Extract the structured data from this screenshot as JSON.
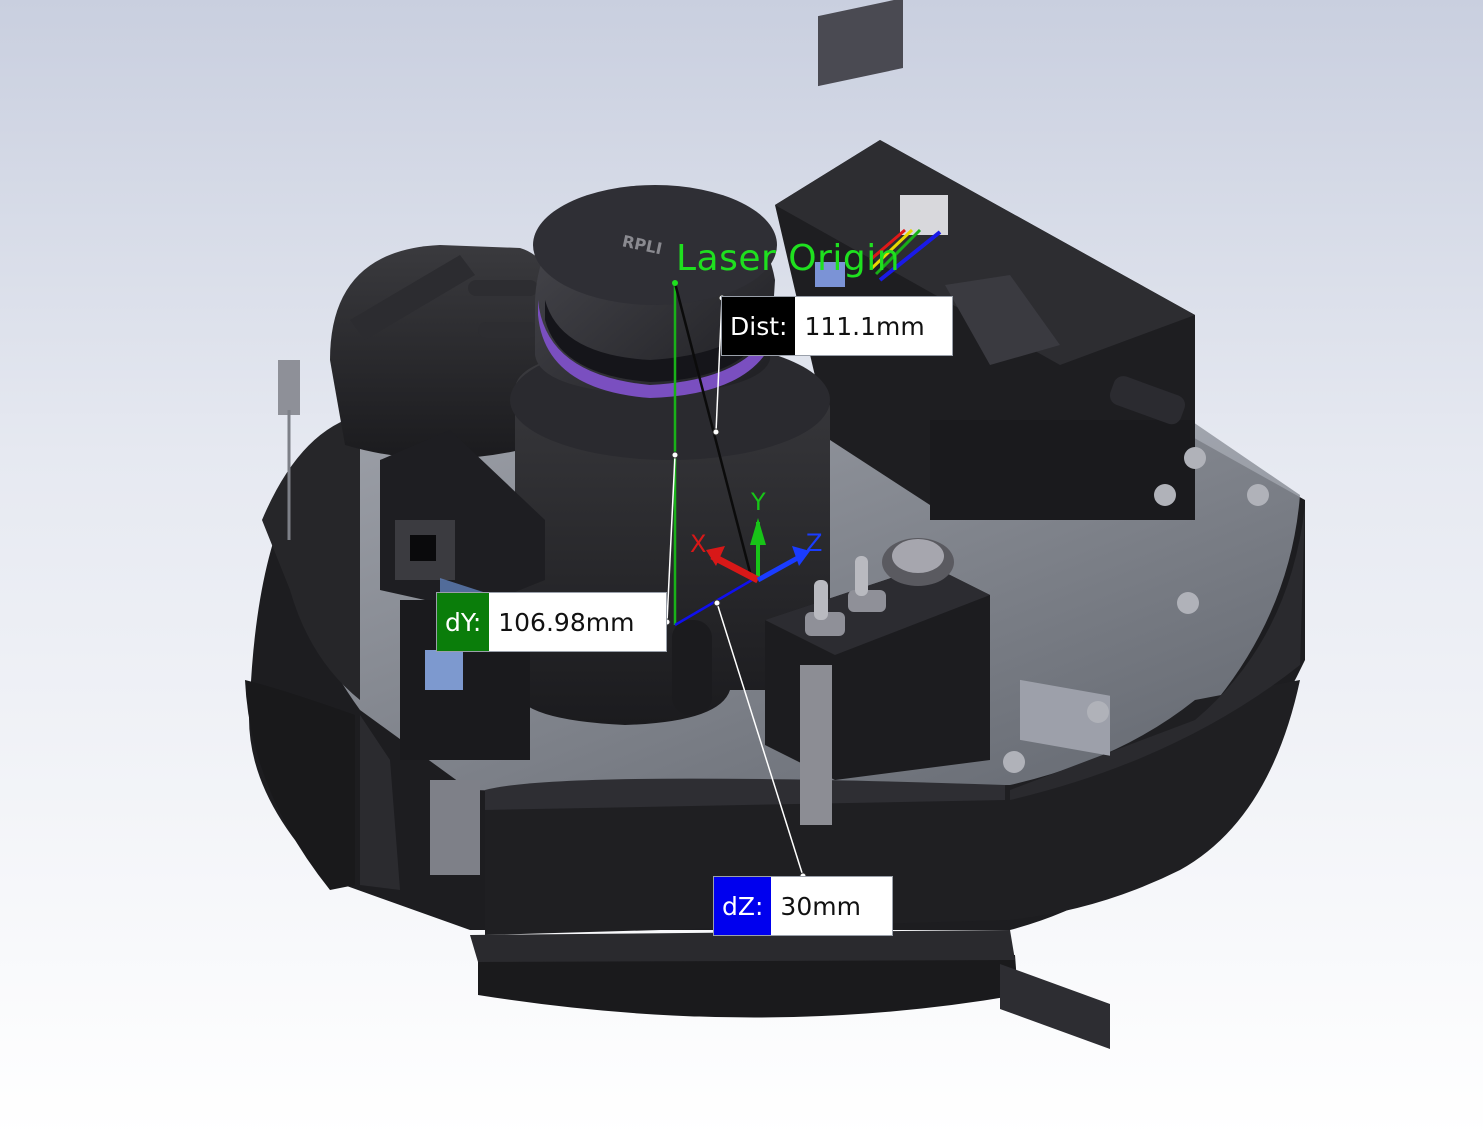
{
  "annotation": {
    "origin_label": "Laser Origin",
    "origin_color": "#1fe01f"
  },
  "measurements": [
    {
      "id": "dist",
      "label": "Dist:",
      "value": "111.1mm",
      "label_bg": "#000000"
    },
    {
      "id": "dy",
      "label": "dY:",
      "value": "106.98mm",
      "label_bg": "#0a7d0a"
    },
    {
      "id": "dz",
      "label": "dZ:",
      "value": "30mm",
      "label_bg": "#0000ee"
    }
  ],
  "triad": {
    "x_label": "X",
    "y_label": "Y",
    "z_label": "Z",
    "x_color": "#d81818",
    "y_color": "#18c418",
    "z_color": "#1a3cff"
  },
  "model": {
    "brand_text": "RPLI",
    "wire_colors": [
      "#e01818",
      "#e8d800",
      "#18b018",
      "#1a1ae8"
    ]
  }
}
